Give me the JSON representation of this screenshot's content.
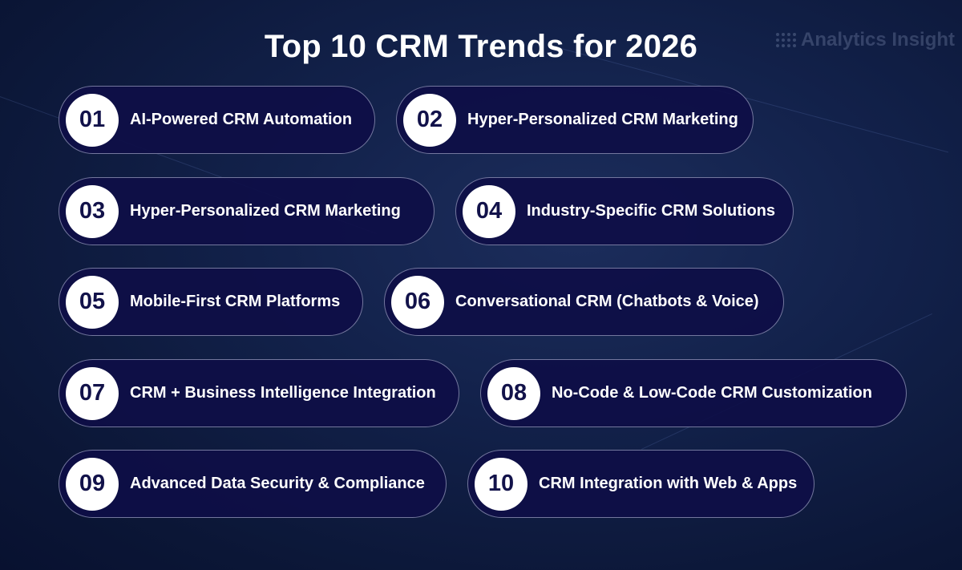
{
  "title": "Top 10 CRM Trends for 2026",
  "brand": "Analytics Insight",
  "trends": [
    {
      "number": "01",
      "label": "AI-Powered CRM Automation"
    },
    {
      "number": "02",
      "label": "Hyper-Personalized CRM Marketing"
    },
    {
      "number": "03",
      "label": "Hyper-Personalized CRM Marketing"
    },
    {
      "number": "04",
      "label": "Industry-Specific CRM Solutions"
    },
    {
      "number": "05",
      "label": "Mobile-First CRM Platforms"
    },
    {
      "number": "06",
      "label": "Conversational CRM (Chatbots & Voice)"
    },
    {
      "number": "07",
      "label": "CRM + Business Intelligence Integration"
    },
    {
      "number": "08",
      "label": "No-Code & Low-Code CRM Customization"
    },
    {
      "number": "09",
      "label": "Advanced Data Security & Compliance"
    },
    {
      "number": "10",
      "label": "CRM Integration with Web & Apps"
    }
  ],
  "colors": {
    "background": "#0b1636",
    "pill": "#0e0e46",
    "number_text": "#12124a"
  }
}
